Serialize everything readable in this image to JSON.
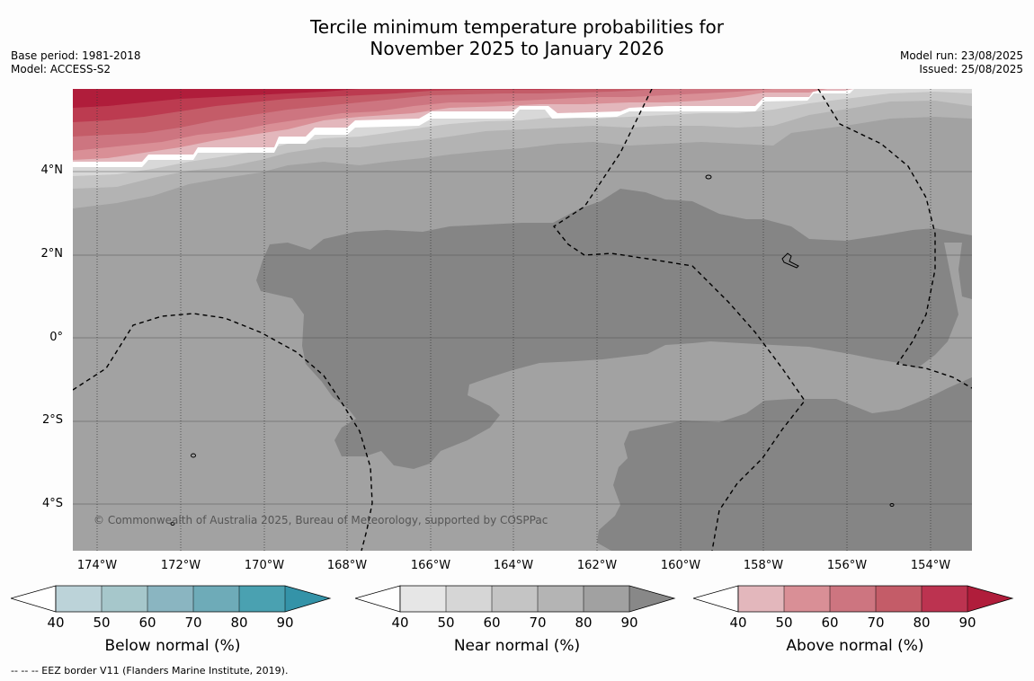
{
  "title": {
    "line1": "Tercile minimum temperature probabilities for",
    "line2": "November 2025 to January 2026"
  },
  "meta_left": {
    "base_period": "Base period: 1981-2018",
    "model": "Model: ACCESS-S2"
  },
  "meta_right": {
    "model_run": "Model run: 23/08/2025",
    "issued": "Issued: 25/08/2025"
  },
  "map": {
    "lat_labels": [
      "4°N",
      "2°N",
      "0°",
      "2°S",
      "4°S"
    ],
    "lon_labels": [
      "174°W",
      "172°W",
      "170°W",
      "168°W",
      "166°W",
      "164°W",
      "162°W",
      "160°W",
      "158°W",
      "156°W",
      "154°W"
    ],
    "copyright": "© Commonwealth of Australia 2025, Bureau of Meteorology, supported by COSPPac",
    "colors": {
      "near_50": "#d8d8d8",
      "near_60": "#c4c4c4",
      "near_70": "#b3b3b3",
      "near_80": "#a2a2a2",
      "near_90": "#858585",
      "above_50": "#d98f96",
      "above_60": "#cd7580",
      "above_70": "#c45c68",
      "above_80": "#bc3b50",
      "above_90": "#b01d3b"
    }
  },
  "colorbars": [
    {
      "title": "Below normal (%)",
      "ticks": [
        "40",
        "50",
        "60",
        "70",
        "80",
        "90"
      ],
      "colors": [
        "#bcd3d9",
        "#a6c7cb",
        "#8ab5c1",
        "#6eabb8",
        "#4aa1b1",
        "#3493a8"
      ]
    },
    {
      "title": "Near normal (%)",
      "ticks": [
        "40",
        "50",
        "60",
        "70",
        "80",
        "90"
      ],
      "colors": [
        "#e6e6e6",
        "#d6d6d6",
        "#c4c4c4",
        "#b4b4b4",
        "#a1a1a1",
        "#888888"
      ]
    },
    {
      "title": "Above normal (%)",
      "ticks": [
        "40",
        "50",
        "60",
        "70",
        "80",
        "90"
      ],
      "colors": [
        "#e3b7bc",
        "#d98f96",
        "#cd7580",
        "#c45c68",
        "#bc3350",
        "#b01d3b"
      ]
    }
  ],
  "footnote": "--  --  -- EEZ border V11 (Flanders Marine Institute, 2019)."
}
